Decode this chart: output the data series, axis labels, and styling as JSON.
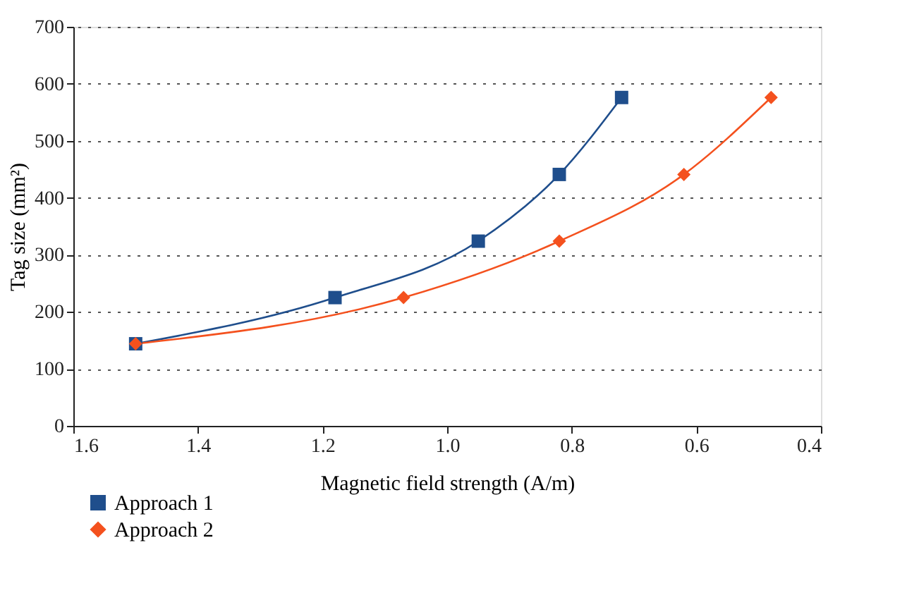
{
  "chart_data": {
    "type": "line",
    "xlabel": "Magnetic field strength (A/m)",
    "ylabel": "Tag size (mm²)",
    "xlim": [
      1.6,
      0.4
    ],
    "xticks": [
      {
        "value": 1.6,
        "label": "1.6"
      },
      {
        "value": 1.4,
        "label": "1.4"
      },
      {
        "value": 1.2,
        "label": "1.2"
      },
      {
        "value": 1.0,
        "label": "1.0"
      },
      {
        "value": 0.8,
        "label": "0.8"
      },
      {
        "value": 0.6,
        "label": "0.6"
      },
      {
        "value": 0.4,
        "label": "0.4"
      }
    ],
    "ylim": [
      0,
      700
    ],
    "yticks": [
      0,
      100,
      200,
      300,
      400,
      500,
      600,
      700
    ],
    "grid": "y",
    "legend": "bottom left",
    "line_style": "solid",
    "series": [
      {
        "name": "Approach 1",
        "color": "#1f4e8c",
        "marker": "square",
        "x": [
          1.5,
          1.18,
          0.95,
          0.82,
          0.72
        ],
        "values": [
          144,
          225,
          324,
          441,
          576
        ]
      },
      {
        "name": "Approach 2",
        "color": "#f4511e",
        "marker": "diamond",
        "x": [
          1.5,
          1.07,
          0.82,
          0.62,
          0.48
        ],
        "values": [
          144,
          225,
          324,
          441,
          576
        ]
      }
    ]
  }
}
